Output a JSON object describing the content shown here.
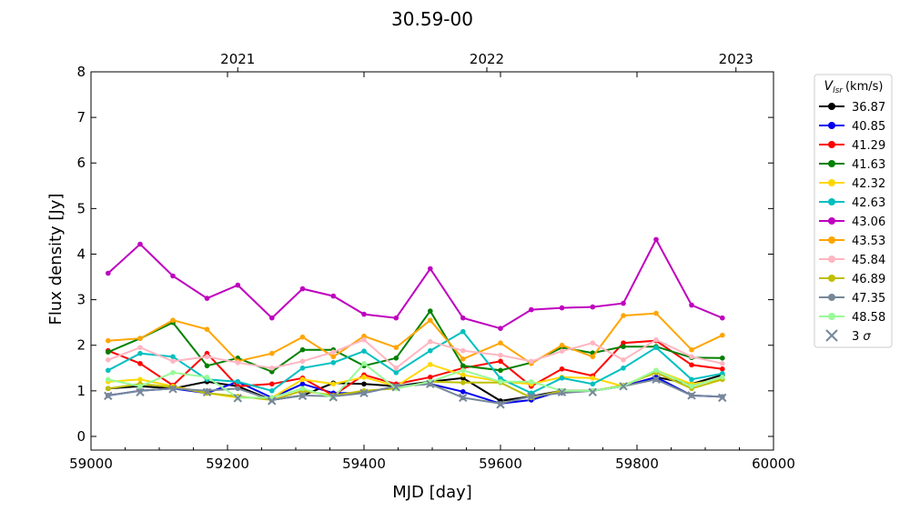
{
  "chart_data": {
    "type": "line",
    "title": "30.59-00",
    "xlabel": "MJD [day]",
    "ylabel": "Flux density [Jy]",
    "xlim": [
      59000,
      60000
    ],
    "ylim": [
      -0.3,
      8
    ],
    "xticks": [
      "59000",
      "59200",
      "59400",
      "59600",
      "59800",
      "60000"
    ],
    "yticks": [
      "0",
      "1",
      "2",
      "3",
      "4",
      "5",
      "6",
      "7",
      "8"
    ],
    "top_axis": {
      "labels": [
        "2021",
        "2022",
        "2023"
      ],
      "mjd": [
        59215,
        59580,
        59945
      ]
    },
    "legend": {
      "title_main": "V",
      "title_sub": "lsr",
      "title_unit": "(km/s)",
      "position": "outside-right"
    },
    "x": [
      59025,
      59072,
      59120,
      59170,
      59215,
      59265,
      59310,
      59355,
      59400,
      59447,
      59497,
      59545,
      59600,
      59645,
      59690,
      59735,
      59780,
      59828,
      59880,
      59925
    ],
    "series": [
      {
        "name": "36.87",
        "color": "#000000",
        "marker": "circle",
        "values": [
          1.05,
          1.1,
          1.05,
          1.2,
          1.1,
          0.8,
          0.9,
          1.17,
          1.15,
          1.1,
          1.2,
          1.28,
          0.78,
          0.88,
          1.0,
          1.0,
          1.1,
          1.3,
          1.15,
          1.35
        ]
      },
      {
        "name": "40.85",
        "color": "#0000ee",
        "marker": "circle",
        "values": [
          0.9,
          1.0,
          1.05,
          0.95,
          1.2,
          0.85,
          1.15,
          0.95,
          0.95,
          1.1,
          1.15,
          0.98,
          0.72,
          0.8,
          1.0,
          1.0,
          1.1,
          1.3,
          0.9,
          0.87
        ]
      },
      {
        "name": "41.29",
        "color": "#ff0000",
        "marker": "circle",
        "values": [
          1.88,
          1.6,
          1.12,
          1.82,
          1.1,
          1.15,
          1.28,
          0.9,
          1.35,
          1.15,
          1.3,
          1.5,
          1.65,
          1.1,
          1.48,
          1.33,
          2.05,
          2.1,
          1.57,
          1.48
        ]
      },
      {
        "name": "41.63",
        "color": "#008000",
        "marker": "circle",
        "values": [
          1.85,
          2.15,
          2.5,
          1.55,
          1.72,
          1.42,
          1.9,
          1.9,
          1.55,
          1.72,
          2.75,
          1.55,
          1.45,
          1.62,
          1.95,
          1.83,
          1.97,
          1.97,
          1.73,
          1.72
        ]
      },
      {
        "name": "42.32",
        "color": "#ffd700",
        "marker": "circle",
        "values": [
          1.2,
          1.25,
          1.1,
          0.95,
          0.85,
          0.85,
          1.25,
          1.15,
          1.3,
          1.1,
          1.58,
          1.35,
          1.2,
          1.15,
          1.3,
          1.28,
          1.1,
          1.45,
          1.15,
          1.25
        ]
      },
      {
        "name": "42.63",
        "color": "#00bfbf",
        "marker": "circle",
        "values": [
          1.45,
          1.82,
          1.75,
          1.25,
          1.2,
          1.0,
          1.5,
          1.62,
          1.87,
          1.4,
          1.88,
          2.3,
          1.27,
          0.95,
          1.28,
          1.15,
          1.5,
          1.95,
          1.25,
          1.38
        ]
      },
      {
        "name": "43.06",
        "color": "#bf00bf",
        "marker": "circle",
        "values": [
          3.58,
          4.22,
          3.52,
          3.03,
          3.32,
          2.6,
          3.24,
          3.08,
          2.68,
          2.6,
          3.68,
          2.6,
          2.37,
          2.78,
          2.82,
          2.84,
          2.92,
          4.32,
          2.88,
          2.6
        ]
      },
      {
        "name": "43.53",
        "color": "#ffa500",
        "marker": "circle",
        "values": [
          2.1,
          2.15,
          2.55,
          2.35,
          1.65,
          1.82,
          2.18,
          1.75,
          2.2,
          1.95,
          2.55,
          1.7,
          2.05,
          1.6,
          2.0,
          1.75,
          2.65,
          2.7,
          1.9,
          2.22
        ]
      },
      {
        "name": "45.84",
        "color": "#ffb6c1",
        "marker": "circle",
        "values": [
          1.68,
          1.95,
          1.65,
          1.75,
          1.62,
          1.5,
          1.65,
          1.85,
          2.12,
          1.5,
          2.08,
          1.88,
          1.78,
          1.65,
          1.87,
          2.05,
          1.68,
          2.12,
          1.75,
          1.6
        ]
      },
      {
        "name": "46.89",
        "color": "#bfbf00",
        "marker": "circle",
        "values": [
          1.05,
          1.15,
          1.08,
          0.95,
          0.88,
          0.8,
          1.0,
          0.9,
          1.0,
          1.05,
          1.2,
          1.18,
          1.18,
          0.85,
          1.0,
          1.0,
          1.12,
          1.4,
          1.05,
          1.25
        ]
      },
      {
        "name": "47.35",
        "color": "#778899",
        "marker": "circle",
        "values": [
          0.9,
          1.0,
          1.05,
          1.0,
          1.05,
          0.8,
          0.9,
          0.88,
          0.95,
          1.1,
          1.15,
          0.85,
          0.72,
          0.88,
          0.95,
          1.0,
          1.1,
          1.25,
          0.9,
          0.87
        ]
      },
      {
        "name": "48.58",
        "color": "#98fb98",
        "marker": "circle",
        "values": [
          1.25,
          1.1,
          1.4,
          1.3,
          0.85,
          0.85,
          1.05,
          0.85,
          1.6,
          1.05,
          1.2,
          1.45,
          1.2,
          1.2,
          1.0,
          1.0,
          1.1,
          1.45,
          1.1,
          1.3
        ]
      }
    ],
    "sigma": {
      "name": "3 σ",
      "name_main": "3 ",
      "name_sym": "σ",
      "color": "#778899",
      "values": [
        0.89,
        0.97,
        1.04,
        0.97,
        0.84,
        0.78,
        0.89,
        0.86,
        0.95,
        1.08,
        1.15,
        0.85,
        0.7,
        0.87,
        0.97,
        0.97,
        1.1,
        1.25,
        0.9,
        0.85
      ]
    }
  }
}
